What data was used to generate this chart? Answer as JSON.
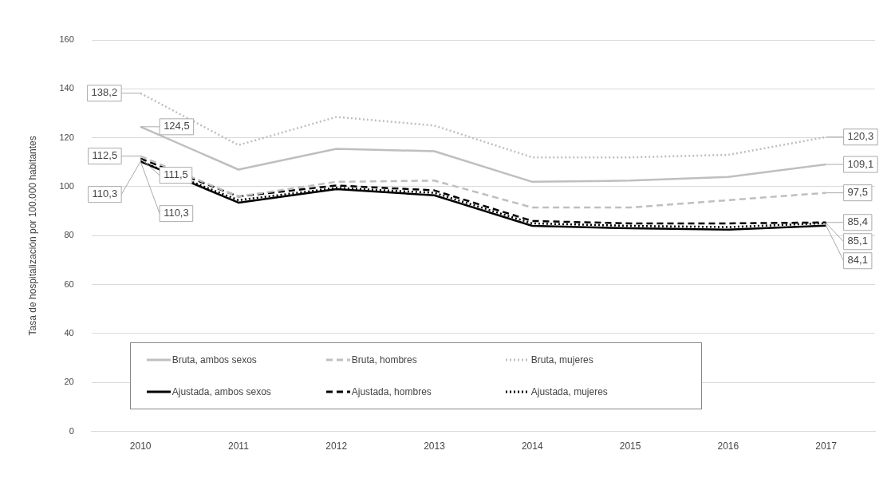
{
  "chart_data": {
    "type": "line",
    "ylabel": "Tasa de hospitalización por 100.000 habitantes",
    "categories": [
      "2010",
      "2011",
      "2012",
      "2013",
      "2014",
      "2015",
      "2016",
      "2017"
    ],
    "ylim": [
      0,
      160
    ],
    "yticks": [
      0,
      20,
      40,
      60,
      80,
      100,
      120,
      140,
      160
    ],
    "grid": "y",
    "legend": "bottom",
    "marker": "none",
    "series": [
      {
        "name": "Bruta, ambos sexos",
        "color": "#bfbfbf",
        "line_style": "solid",
        "values": [
          124.5,
          107,
          115.5,
          114.5,
          102,
          102.5,
          104,
          109.1
        ],
        "value_labels": [
          "124,5",
          null,
          null,
          null,
          null,
          null,
          null,
          "109,1"
        ]
      },
      {
        "name": "Bruta, hombres",
        "color": "#bfbfbf",
        "line_style": "dashed",
        "values": [
          112.5,
          96,
          102,
          102.5,
          91.5,
          91.5,
          94.5,
          97.5
        ],
        "value_labels": [
          "112,5",
          null,
          null,
          null,
          null,
          null,
          null,
          "97,5"
        ]
      },
      {
        "name": "Bruta, mujeres",
        "color": "#bfbfbf",
        "line_style": "dotted",
        "values": [
          138.2,
          117,
          128.5,
          125,
          112,
          112,
          113,
          120.3
        ],
        "value_labels": [
          "138,2",
          null,
          null,
          null,
          null,
          null,
          null,
          "120,3"
        ]
      },
      {
        "name": "Ajustada, ambos sexos",
        "color": "#000000",
        "line_style": "solid",
        "values": [
          110.3,
          93.5,
          99,
          96.5,
          84,
          83,
          82.5,
          84.1
        ],
        "value_labels": [
          "110,3",
          null,
          null,
          null,
          null,
          null,
          null,
          "84,1"
        ]
      },
      {
        "name": "Ajustada, hombres",
        "color": "#000000",
        "line_style": "dashed",
        "values": [
          111.5,
          96,
          100.5,
          98.5,
          86,
          85,
          85,
          85.4
        ],
        "value_labels": [
          "111,5",
          null,
          null,
          null,
          null,
          null,
          null,
          "85,4"
        ]
      },
      {
        "name": "Ajustada, mujeres",
        "color": "#000000",
        "line_style": "dotted",
        "values": [
          110.3,
          94.5,
          99.5,
          97.5,
          85,
          84,
          83.5,
          85.1
        ],
        "value_labels": [
          "110,3",
          null,
          null,
          null,
          null,
          null,
          null,
          "85,1"
        ]
      }
    ]
  }
}
